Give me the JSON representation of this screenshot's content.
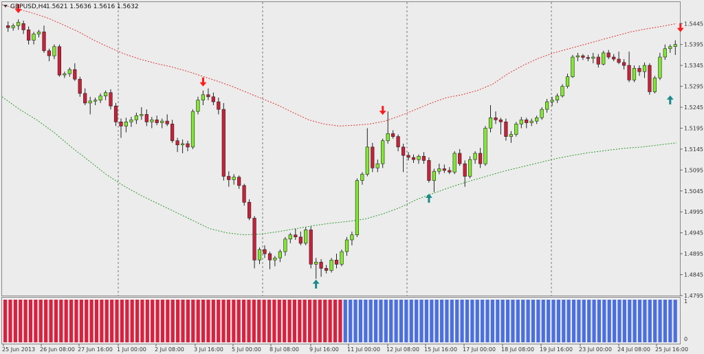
{
  "header": {
    "symbol": "GBPUSD,H4",
    "ohlc": "1.5621 1.5636 1.5616 1.5632"
  },
  "colors": {
    "background": "#ececec",
    "bull": "#7fea2b",
    "bear": "#cc1f38",
    "upper_band": "#e03434",
    "lower_band": "#2b9a2b",
    "arrow_down": "#ff1a1a",
    "arrow_up": "#1a8a8a",
    "hist_red": "#d9213f",
    "hist_blue": "#4a6fe0"
  },
  "chart_data": [
    {
      "type": "candlestick",
      "name": "price",
      "ylim": [
        1.4795,
        1.5475
      ],
      "y_ticks": [
        "1.5445",
        "1.5395",
        "1.5345",
        "1.5295",
        "1.5245",
        "1.5195",
        "1.5145",
        "1.5095",
        "1.5045",
        "1.4995",
        "1.4945",
        "1.4895",
        "1.4845",
        "1.4795"
      ],
      "x_ticks": [
        "25 Jun 2013",
        "26 Jun 08:00",
        "27 Jun 16:00",
        "1 Jul 00:00",
        "2 Jul 08:00",
        "3 Jul 16:00",
        "5 Jul 00:00",
        "8 Jul 08:00",
        "9 Jul 16:00",
        "11 Jul 00:00",
        "12 Jul 08:00",
        "15 Jul 16:00",
        "17 Jul 00:00",
        "18 Jul 08:00",
        "19 Jul 16:00",
        "23 Jul 00:00",
        "24 Jul 08:00",
        "25 Jul 16:00"
      ],
      "candles": [
        [
          1.544,
          1.545,
          1.5425,
          1.5435
        ],
        [
          1.5435,
          1.5445,
          1.5428,
          1.544
        ],
        [
          1.544,
          1.5455,
          1.543,
          1.5448
        ],
        [
          1.5445,
          1.5452,
          1.542,
          1.543
        ],
        [
          1.543,
          1.5438,
          1.5395,
          1.5405
        ],
        [
          1.5405,
          1.5425,
          1.5395,
          1.542
        ],
        [
          1.542,
          1.543,
          1.5412,
          1.5425
        ],
        [
          1.5425,
          1.544,
          1.5375,
          1.538
        ],
        [
          1.538,
          1.5385,
          1.5355,
          1.5368
        ],
        [
          1.5368,
          1.5395,
          1.536,
          1.539
        ],
        [
          1.539,
          1.5395,
          1.5318,
          1.5322
        ],
        [
          1.5322,
          1.533,
          1.5315,
          1.5325
        ],
        [
          1.5325,
          1.534,
          1.5318,
          1.5335
        ],
        [
          1.5335,
          1.535,
          1.5308,
          1.5312
        ],
        [
          1.5312,
          1.5318,
          1.527,
          1.5278
        ],
        [
          1.5278,
          1.529,
          1.525,
          1.5255
        ],
        [
          1.5255,
          1.527,
          1.5228,
          1.526
        ],
        [
          1.526,
          1.5268,
          1.525,
          1.5262
        ],
        [
          1.5262,
          1.5278,
          1.5255,
          1.5272
        ],
        [
          1.5272,
          1.5285,
          1.5262,
          1.528
        ],
        [
          1.528,
          1.5288,
          1.524,
          1.5248
        ],
        [
          1.5248,
          1.5255,
          1.52,
          1.521
        ],
        [
          1.521,
          1.5218,
          1.5172,
          1.52
        ],
        [
          1.52,
          1.522,
          1.5185,
          1.521
        ],
        [
          1.521,
          1.5222,
          1.5198,
          1.5215
        ],
        [
          1.5215,
          1.5232,
          1.5205,
          1.5225
        ],
        [
          1.5225,
          1.5245,
          1.5215,
          1.5228
        ],
        [
          1.5228,
          1.524,
          1.52,
          1.521
        ],
        [
          1.521,
          1.5222,
          1.5195,
          1.5215
        ],
        [
          1.5215,
          1.5225,
          1.5202,
          1.5208
        ],
        [
          1.5208,
          1.5218,
          1.5195,
          1.5212
        ],
        [
          1.5212,
          1.5228,
          1.52,
          1.5205
        ],
        [
          1.5205,
          1.5215,
          1.516,
          1.5165
        ],
        [
          1.5165,
          1.5172,
          1.5138,
          1.5155
        ],
        [
          1.5155,
          1.5168,
          1.5135,
          1.5158
        ],
        [
          1.5158,
          1.5165,
          1.514,
          1.515
        ],
        [
          1.515,
          1.524,
          1.5145,
          1.5235
        ],
        [
          1.5235,
          1.527,
          1.5228,
          1.5262
        ],
        [
          1.5262,
          1.5285,
          1.525,
          1.5275
        ],
        [
          1.5275,
          1.529,
          1.5262,
          1.527
        ],
        [
          1.527,
          1.528,
          1.525,
          1.5258
        ],
        [
          1.5258,
          1.5268,
          1.5228,
          1.524
        ],
        [
          1.524,
          1.5255,
          1.507,
          1.508
        ],
        [
          1.508,
          1.5092,
          1.5055,
          1.5072
        ],
        [
          1.5072,
          1.5085,
          1.506,
          1.5078
        ],
        [
          1.5078,
          1.5082,
          1.505,
          1.5058
        ],
        [
          1.5058,
          1.5062,
          1.501,
          1.5018
        ],
        [
          1.5018,
          1.5025,
          1.4975,
          1.498
        ],
        [
          1.498,
          1.4985,
          1.486,
          1.488
        ],
        [
          1.488,
          1.491,
          1.487,
          1.4905
        ],
        [
          1.4905,
          1.4915,
          1.4885,
          1.4895
        ],
        [
          1.4895,
          1.49,
          1.4858,
          1.488
        ],
        [
          1.488,
          1.489,
          1.4865,
          1.4885
        ],
        [
          1.4885,
          1.4905,
          1.4875,
          1.49
        ],
        [
          1.49,
          1.4935,
          1.489,
          1.493
        ],
        [
          1.493,
          1.4945,
          1.492,
          1.494
        ],
        [
          1.494,
          1.4955,
          1.4928,
          1.4935
        ],
        [
          1.4935,
          1.4948,
          1.4915,
          1.492
        ],
        [
          1.492,
          1.4958,
          1.4915,
          1.4952
        ],
        [
          1.4952,
          1.496,
          1.486,
          1.487
        ],
        [
          1.487,
          1.4885,
          1.4835,
          1.4875
        ],
        [
          1.4875,
          1.4882,
          1.484,
          1.486
        ],
        [
          1.486,
          1.4868,
          1.4848,
          1.4855
        ],
        [
          1.4855,
          1.4885,
          1.485,
          1.488
        ],
        [
          1.488,
          1.4895,
          1.486,
          1.487
        ],
        [
          1.487,
          1.4905,
          1.4865,
          1.49
        ],
        [
          1.49,
          1.4935,
          1.489,
          1.4928
        ],
        [
          1.4928,
          1.4948,
          1.4915,
          1.494
        ],
        [
          1.494,
          1.5075,
          1.4935,
          1.507
        ],
        [
          1.507,
          1.509,
          1.506,
          1.5085
        ],
        [
          1.5085,
          1.5195,
          1.508,
          1.515
        ],
        [
          1.515,
          1.516,
          1.509,
          1.51
        ],
        [
          1.51,
          1.512,
          1.509,
          1.511
        ],
        [
          1.511,
          1.517,
          1.51,
          1.5165
        ],
        [
          1.5165,
          1.5235,
          1.5158,
          1.5182
        ],
        [
          1.5182,
          1.519,
          1.517,
          1.5175
        ],
        [
          1.5175,
          1.518,
          1.514,
          1.515
        ],
        [
          1.515,
          1.5158,
          1.509,
          1.513
        ],
        [
          1.513,
          1.5138,
          1.5118,
          1.5125
        ],
        [
          1.5125,
          1.5132,
          1.5112,
          1.512
        ],
        [
          1.512,
          1.5132,
          1.511,
          1.5128
        ],
        [
          1.5128,
          1.5138,
          1.511,
          1.5118
        ],
        [
          1.5118,
          1.5125,
          1.5065,
          1.507
        ],
        [
          1.507,
          1.5098,
          1.5042,
          1.5092
        ],
        [
          1.5092,
          1.511,
          1.5085,
          1.5098
        ],
        [
          1.5098,
          1.5108,
          1.5088,
          1.5094
        ],
        [
          1.5094,
          1.5102,
          1.5085,
          1.509
        ],
        [
          1.509,
          1.514,
          1.5085,
          1.5135
        ],
        [
          1.5135,
          1.5145,
          1.5105,
          1.511
        ],
        [
          1.511,
          1.5118,
          1.5055,
          1.508
        ],
        [
          1.508,
          1.5128,
          1.5075,
          1.512
        ],
        [
          1.512,
          1.514,
          1.511,
          1.5135
        ],
        [
          1.5135,
          1.5148,
          1.51,
          1.511
        ],
        [
          1.511,
          1.52,
          1.5105,
          1.5195
        ],
        [
          1.5195,
          1.525,
          1.5185,
          1.522
        ],
        [
          1.522,
          1.5235,
          1.5205,
          1.5215
        ],
        [
          1.5215,
          1.522,
          1.518,
          1.521
        ],
        [
          1.521,
          1.5218,
          1.5165,
          1.5175
        ],
        [
          1.5175,
          1.5188,
          1.516,
          1.518
        ],
        [
          1.518,
          1.521,
          1.5175,
          1.5205
        ],
        [
          1.5205,
          1.5222,
          1.5195,
          1.5215
        ],
        [
          1.5215,
          1.522,
          1.5195,
          1.5208
        ],
        [
          1.5208,
          1.5218,
          1.52,
          1.5212
        ],
        [
          1.5212,
          1.5225,
          1.5205,
          1.522
        ],
        [
          1.522,
          1.5245,
          1.5215,
          1.524
        ],
        [
          1.524,
          1.5265,
          1.5232,
          1.5258
        ],
        [
          1.5258,
          1.527,
          1.5248,
          1.5262
        ],
        [
          1.5262,
          1.5278,
          1.5255,
          1.5272
        ],
        [
          1.5272,
          1.53,
          1.5268,
          1.5295
        ],
        [
          1.5295,
          1.5325,
          1.529,
          1.5318
        ],
        [
          1.5318,
          1.537,
          1.5315,
          1.5365
        ],
        [
          1.5365,
          1.5375,
          1.5355,
          1.5368
        ],
        [
          1.5368,
          1.5372,
          1.5358,
          1.5364
        ],
        [
          1.5364,
          1.537,
          1.5355,
          1.5362
        ],
        [
          1.5362,
          1.5375,
          1.535,
          1.5365
        ],
        [
          1.5365,
          1.5372,
          1.534,
          1.5348
        ],
        [
          1.5348,
          1.538,
          1.5345,
          1.5375
        ],
        [
          1.5375,
          1.5382,
          1.536,
          1.5365
        ],
        [
          1.5365,
          1.5372,
          1.5355,
          1.536
        ],
        [
          1.536,
          1.5378,
          1.5348,
          1.5352
        ],
        [
          1.5352,
          1.536,
          1.5335,
          1.5345
        ],
        [
          1.5345,
          1.5378,
          1.5305,
          1.531
        ],
        [
          1.531,
          1.5345,
          1.5305,
          1.5338
        ],
        [
          1.5338,
          1.5345,
          1.532,
          1.533
        ],
        [
          1.533,
          1.5352,
          1.5315,
          1.5345
        ],
        [
          1.5345,
          1.535,
          1.5275,
          1.5282
        ],
        [
          1.5282,
          1.532,
          1.5278,
          1.5315
        ],
        [
          1.5315,
          1.5375,
          1.531,
          1.5365
        ],
        [
          1.5365,
          1.5395,
          1.5358,
          1.5385
        ],
        [
          1.5385,
          1.5395,
          1.5375,
          1.539
        ],
        [
          1.539,
          1.5405,
          1.537,
          1.5395
        ]
      ],
      "upper_band": [
        1.549,
        1.548,
        1.547,
        1.5458,
        1.5442,
        1.5425,
        1.5405,
        1.5388,
        1.5372,
        1.536,
        1.535,
        1.5342,
        1.5332,
        1.532,
        1.5308,
        1.5295,
        1.528,
        1.5265,
        1.525,
        1.5232,
        1.5215,
        1.5205,
        1.52,
        1.5202,
        1.5205,
        1.5212,
        1.5225,
        1.524,
        1.5255,
        1.5268,
        1.5275,
        1.5285,
        1.53,
        1.5325,
        1.5345,
        1.5362,
        1.5375,
        1.5385,
        1.5395,
        1.5405,
        1.5415,
        1.5425,
        1.5432,
        1.5438,
        1.5445
      ],
      "lower_band": [
        1.527,
        1.524,
        1.5215,
        1.5185,
        1.515,
        1.5118,
        1.5085,
        1.5058,
        1.5035,
        1.5015,
        1.4995,
        1.4975,
        1.4955,
        1.4945,
        1.494,
        1.4942,
        1.4948,
        1.4955,
        1.4962,
        1.4968,
        1.4972,
        1.4978,
        1.499,
        1.5005,
        1.5025,
        1.504,
        1.5055,
        1.5068,
        1.508,
        1.5092,
        1.5102,
        1.5112,
        1.5122,
        1.513,
        1.5137,
        1.5142,
        1.5147,
        1.515,
        1.5155,
        1.516
      ],
      "arrows_down": [
        [
          2,
          1.5478
        ],
        [
          38,
          1.5303
        ],
        [
          73,
          1.5235
        ],
        [
          131,
          1.5433
        ]
      ],
      "arrows_up": [
        [
          60,
          1.4825
        ],
        [
          82,
          1.503
        ],
        [
          129,
          1.5265
        ]
      ]
    },
    {
      "type": "bar",
      "name": "histogram",
      "ylim": [
        0,
        1
      ],
      "y_ticks": [
        "1",
        "0"
      ],
      "red_count": 67,
      "blue_count": 66
    }
  ]
}
